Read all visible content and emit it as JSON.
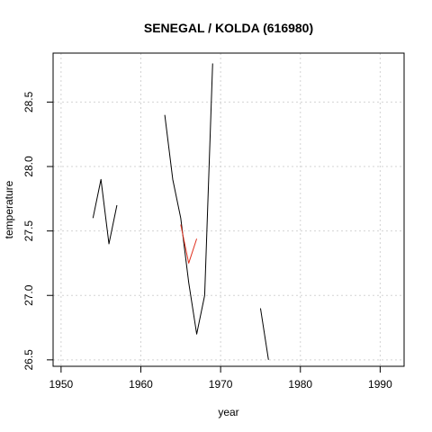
{
  "chart_data": {
    "type": "line",
    "title": "SENEGAL / KOLDA (616980)",
    "xlabel": "year",
    "ylabel": "temperature",
    "xlim": [
      1949,
      1993
    ],
    "ylim": [
      26.45,
      28.88
    ],
    "x_ticks": [
      1950,
      1960,
      1970,
      1980,
      1990
    ],
    "y_ticks": [
      26.5,
      27.0,
      27.5,
      28.0,
      28.5
    ],
    "x_tick_labels": [
      "1950",
      "1960",
      "1970",
      "1980",
      "1990"
    ],
    "y_tick_labels": [
      "26.5",
      "27.0",
      "27.5",
      "28.0",
      "28.5"
    ],
    "grid": true,
    "legend": "none",
    "series": [
      {
        "color": "#000000",
        "segments": [
          [
            [
              1954,
              27.6
            ],
            [
              1955,
              27.9
            ],
            [
              1956,
              27.4
            ],
            [
              1957,
              27.7
            ]
          ],
          [
            [
              1963,
              28.4
            ],
            [
              1964,
              27.9
            ],
            [
              1965,
              27.6
            ],
            [
              1966,
              27.1
            ],
            [
              1967,
              26.7
            ],
            [
              1968,
              27.0
            ],
            [
              1969,
              28.8
            ]
          ],
          [
            [
              1975,
              26.9
            ],
            [
              1976,
              26.5
            ]
          ]
        ]
      },
      {
        "color": "#e0301e",
        "segments": [
          [
            [
              1965,
              27.55
            ],
            [
              1966,
              27.25
            ],
            [
              1967,
              27.44
            ]
          ]
        ]
      }
    ]
  }
}
